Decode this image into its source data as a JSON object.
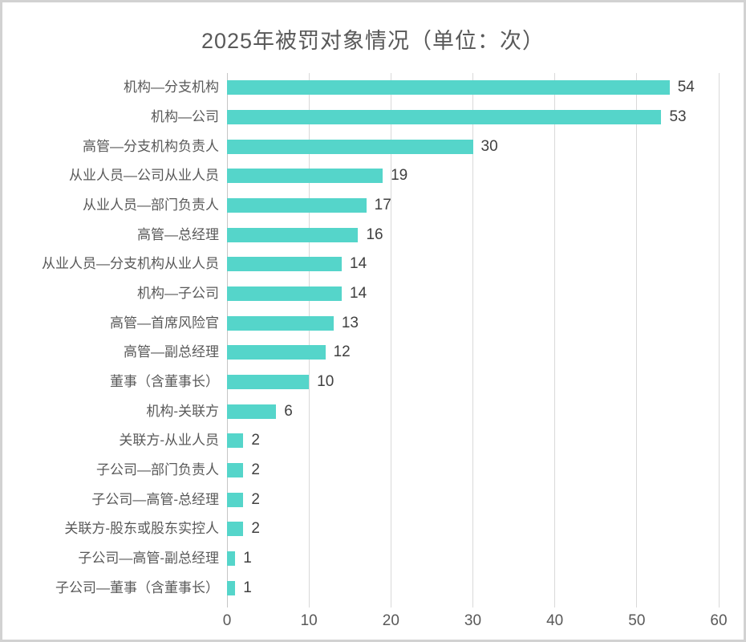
{
  "frame": {
    "background_color": "#ffffff",
    "border_color": "#d2d2d2"
  },
  "chart_data": {
    "type": "bar",
    "orientation": "horizontal",
    "title": "2025年被罚对象情况（单位：次）",
    "categories": [
      "机构—分支机构",
      "机构—公司",
      "高管—分支机构负责人",
      "从业人员—公司从业人员",
      "从业人员—部门负责人",
      "高管—总经理",
      "从业人员—分支机构从业人员",
      "机构—子公司",
      "高管—首席风险官",
      "高管—副总经理",
      "董事（含董事长）",
      "机构-关联方",
      "关联方-从业人员",
      "子公司—部门负责人",
      "子公司—高管-总经理",
      "关联方-股东或股东实控人",
      "子公司—高管-副总经理",
      "子公司—董事（含董事长）"
    ],
    "values": [
      54,
      53,
      30,
      19,
      17,
      16,
      14,
      14,
      13,
      12,
      10,
      6,
      2,
      2,
      2,
      2,
      1,
      1
    ],
    "x_ticks": [
      "0",
      "10",
      "20",
      "30",
      "40",
      "50",
      "60"
    ],
    "xlim": [
      0,
      60
    ],
    "xlabel": "",
    "ylabel": "",
    "grid": true,
    "value_labels_shown": true,
    "bar_color": "#55d5ca",
    "gridline_color": "#d9d9d9",
    "title_color": "#595959",
    "label_color": "#595959",
    "value_color": "#404040"
  }
}
